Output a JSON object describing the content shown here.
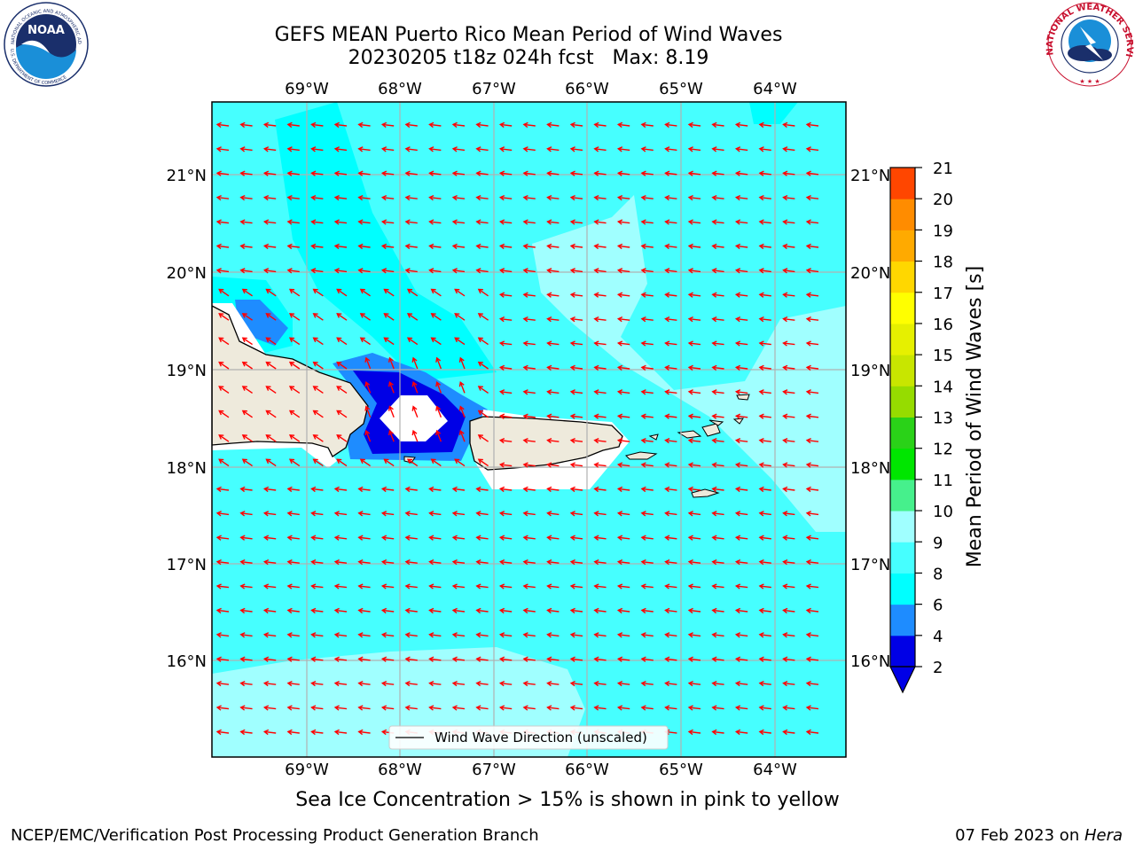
{
  "header": {
    "title_line1": "GEFS MEAN Puerto Rico Mean Period of Wind Waves",
    "title_line2": "20230205 t18z 024h fcst   Max: 8.19"
  },
  "logos": {
    "left": "noara-logo",
    "left_text": "NOAA",
    "left_ring_top": "NATIONAL OCEANIC AND ATMOSPHERIC ADMINISTRATION",
    "left_ring_bottom": "U.S. DEPARTMENT OF COMMERCE",
    "right": "nws-logo",
    "right_ring": "NATIONAL WEATHER SERVICE"
  },
  "map": {
    "lon_labels": [
      "69°W",
      "68°W",
      "67°W",
      "66°W",
      "65°W",
      "64°W"
    ],
    "lat_labels": [
      "21°N",
      "20°N",
      "19°N",
      "18°N",
      "17°N",
      "16°N"
    ],
    "legend_label": "Wind Wave Direction (unscaled)",
    "wind_arrow_color": "#ff0000",
    "land_color": "#eeeadc"
  },
  "colorbar": {
    "label": "Mean Period of Wind Waves [s]",
    "ticks": [
      "2",
      "4",
      "6",
      "8",
      "9",
      "10",
      "11",
      "12",
      "13",
      "14",
      "15",
      "16",
      "17",
      "18",
      "19",
      "20",
      "21"
    ],
    "colors": [
      "#0000e6",
      "#1e8cff",
      "#00ffff",
      "#46ffff",
      "#a0ffff",
      "#46f08c",
      "#00e600",
      "#2ad218",
      "#96dc00",
      "#c8e600",
      "#e6f000",
      "#ffff00",
      "#ffd700",
      "#ffaa00",
      "#ff8c00",
      "#ff4600",
      "#ff0000"
    ]
  },
  "sea_ice_note": "Sea Ice Concentration > 15% is shown in pink to yellow",
  "footer": {
    "left": "NCEP/EMC/Verification Post Processing Product Generation Branch",
    "right_date": "07 Feb 2023 on ",
    "right_host": "Hera"
  }
}
